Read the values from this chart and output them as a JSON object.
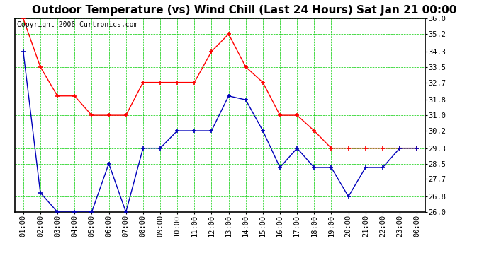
{
  "title": "Outdoor Temperature (vs) Wind Chill (Last 24 Hours) Sat Jan 21 00:00",
  "copyright": "Copyright 2006 Curtronics.com",
  "x_labels": [
    "01:00",
    "02:00",
    "03:00",
    "04:00",
    "05:00",
    "06:00",
    "07:00",
    "08:00",
    "09:00",
    "10:00",
    "11:00",
    "12:00",
    "13:00",
    "14:00",
    "15:00",
    "16:00",
    "17:00",
    "18:00",
    "19:00",
    "20:00",
    "21:00",
    "22:00",
    "23:00",
    "00:00"
  ],
  "temp_data": [
    36.0,
    33.5,
    32.0,
    32.0,
    31.0,
    31.0,
    31.0,
    32.7,
    32.7,
    32.7,
    32.7,
    34.3,
    35.2,
    33.5,
    32.7,
    31.0,
    31.0,
    30.2,
    29.3,
    29.3,
    29.3,
    29.3,
    29.3,
    29.3
  ],
  "wind_chill_data": [
    34.3,
    27.0,
    26.0,
    26.0,
    26.0,
    28.5,
    26.0,
    29.3,
    29.3,
    30.2,
    30.2,
    30.2,
    32.0,
    31.8,
    30.2,
    28.3,
    29.3,
    28.3,
    28.3,
    26.8,
    28.3,
    28.3,
    29.3,
    29.3
  ],
  "temp_color": "#ff0000",
  "wind_chill_color": "#0000bb",
  "bg_color": "#ffffff",
  "plot_bg_color": "#ffffff",
  "grid_color": "#00cc00",
  "y_min": 26.0,
  "y_max": 36.0,
  "y_ticks": [
    26.0,
    26.8,
    27.7,
    28.5,
    29.3,
    30.2,
    31.0,
    31.8,
    32.7,
    33.5,
    34.3,
    35.2,
    36.0
  ],
  "title_fontsize": 11,
  "copyright_fontsize": 7,
  "tick_fontsize": 7.5
}
